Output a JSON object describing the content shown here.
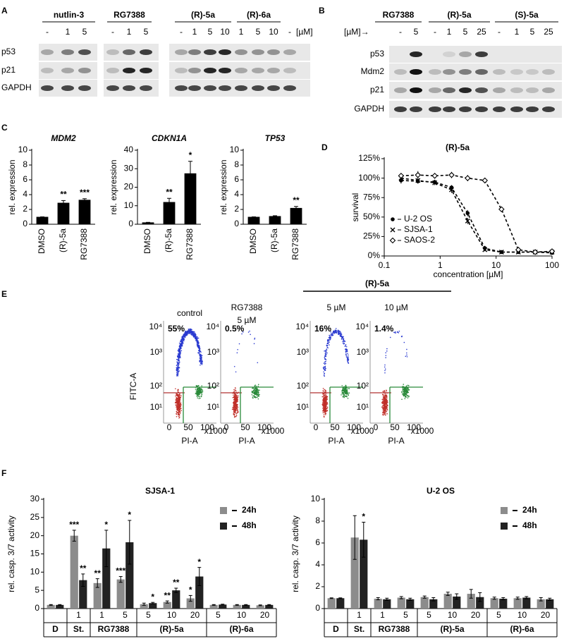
{
  "letters": [
    "A",
    "B",
    "C",
    "D",
    "E",
    "F"
  ],
  "panels": {
    "A": {
      "groups": [
        "nutlin-3",
        "RG7388",
        "(R)-5a",
        "(R)-6a"
      ],
      "lanes": [
        "-",
        "1",
        "5",
        "-",
        "1",
        "5",
        "-",
        "1",
        "5",
        "10",
        "1",
        "5",
        "10",
        "-"
      ],
      "unit": "[µM]",
      "rows": [
        "p53",
        "p21",
        "GAPDH"
      ]
    },
    "B": {
      "groups": [
        "RG7388",
        "(R)-5a",
        "(S)-5a"
      ],
      "unit": "[µM]→",
      "lanes": [
        "-",
        "5",
        "-",
        "1",
        "5",
        "25",
        "-",
        "1",
        "5",
        "25"
      ],
      "rows": [
        "p53",
        "Mdm2",
        "p21",
        "GAPDH"
      ]
    },
    "E": {
      "treatment": "(R)-5a",
      "plots": [
        {
          "title": [
            "control"
          ],
          "percent": "55%"
        },
        {
          "title": [
            "RG7388",
            "5 µM"
          ],
          "percent": "0.5%"
        },
        {
          "title": [
            "5 µM"
          ],
          "percent": "16%"
        },
        {
          "title": [
            "10 µM"
          ],
          "percent": "1.4%"
        }
      ],
      "xlabel": "PI-A",
      "ylabel": "FITC-A",
      "yticks": [
        "10⁴",
        "10³",
        "10²",
        "10¹"
      ],
      "xticks": [
        "0",
        "50",
        "100"
      ],
      "xunit": "x1000"
    }
  },
  "chart_data": [
    {
      "type": "bar",
      "title": "MDM2",
      "ylabel": "rel. expression",
      "categories": [
        "DMSO",
        "(R)-5a",
        "RG7388"
      ],
      "values": [
        1,
        2.9,
        3.3
      ],
      "errors": [
        0,
        0.3,
        0.15
      ],
      "annotations": [
        null,
        "**",
        "***"
      ],
      "color": "#000000",
      "ylim": [
        0,
        10
      ],
      "yticks": [
        0,
        2,
        4,
        6,
        8,
        10
      ]
    },
    {
      "type": "bar",
      "title": "CDKN1A",
      "ylabel": "rel. expression",
      "categories": [
        "DMSO",
        "(R)-5a",
        "RG7388"
      ],
      "values": [
        1,
        12,
        27.5
      ],
      "errors": [
        0,
        2,
        6.5
      ],
      "annotations": [
        null,
        "**",
        "*"
      ],
      "color": "#000000",
      "ylim": [
        0,
        40
      ],
      "yticks": [
        0,
        10,
        20,
        30,
        40
      ]
    },
    {
      "type": "bar",
      "title": "TP53",
      "ylabel": "rel. expression",
      "categories": [
        "DMSO",
        "(R)-5a",
        "RG7388"
      ],
      "values": [
        1,
        1.1,
        2.2
      ],
      "errors": [
        0,
        0.05,
        0.2
      ],
      "annotations": [
        null,
        null,
        "**"
      ],
      "color": "#000000",
      "ylim": [
        0,
        10
      ],
      "yticks": [
        0,
        2,
        4,
        6,
        8,
        10
      ]
    },
    {
      "type": "scatter",
      "title": "(R)-5a",
      "xlabel": "concentration [µM]",
      "ylabel": "survival",
      "xscale": "log",
      "xlim": [
        0.1,
        100
      ],
      "xticks": [
        0.1,
        1,
        10,
        100
      ],
      "ylim": [
        0,
        125
      ],
      "yticks": [
        {
          "value": 0,
          "label": "0%"
        },
        {
          "value": 25,
          "label": "25%"
        },
        {
          "value": 50,
          "label": "50%"
        },
        {
          "value": 75,
          "label": "75%"
        },
        {
          "value": 100,
          "label": "100%"
        },
        {
          "value": 125,
          "label": "125%"
        }
      ],
      "legend": "lower left",
      "series": [
        {
          "name": "U-2 OS",
          "marker": "circle",
          "color": "#000000",
          "x": [
            0.2,
            0.4,
            0.8,
            1.6,
            3.1,
            6.3,
            12.5,
            25,
            50,
            100
          ],
          "values": [
            97,
            96,
            95,
            88,
            55,
            10,
            5,
            5,
            5,
            4
          ],
          "errors": [
            4,
            3,
            3,
            3,
            4,
            3,
            1,
            1,
            1,
            1
          ]
        },
        {
          "name": "SJSA-1",
          "marker": "cross",
          "color": "#000000",
          "x": [
            0.2,
            0.4,
            0.8,
            1.6,
            3.1,
            6.3,
            12.5,
            25,
            50,
            100
          ],
          "values": [
            100,
            97,
            94,
            85,
            45,
            8,
            5,
            5,
            5,
            5
          ],
          "errors": [
            3,
            3,
            3,
            4,
            4,
            2,
            1,
            1,
            1,
            1
          ]
        },
        {
          "name": "SAOS-2",
          "marker": "diamond",
          "color": "#000000",
          "x": [
            0.2,
            0.4,
            0.8,
            1.6,
            3.1,
            6.3,
            12.5,
            25,
            50,
            100
          ],
          "values": [
            103,
            104,
            103,
            104,
            100,
            97,
            60,
            8,
            5,
            6
          ],
          "errors": [
            3,
            5,
            3,
            4,
            4,
            3,
            3,
            2,
            1,
            1
          ]
        }
      ]
    },
    {
      "type": "grouped-bar",
      "title": "SJSA-1",
      "ylabel": "rel. casp. 3/7 activity",
      "groups": [
        {
          "label": "D",
          "categories": [
            null
          ]
        },
        {
          "label": "St.",
          "categories": [
            "1"
          ]
        },
        {
          "label": "RG7388",
          "categories": [
            "1",
            "5"
          ]
        },
        {
          "label": "(R)-5a",
          "categories": [
            "5",
            "10",
            "20"
          ]
        },
        {
          "label": "(R)-6a",
          "categories": [
            "5",
            "10",
            "20"
          ]
        }
      ],
      "ylim": [
        0,
        30
      ],
      "yticks": [
        0,
        5,
        10,
        15,
        20,
        25,
        30
      ],
      "legend": "upper right",
      "series": [
        {
          "name": "24h",
          "color": "#8c8c8c",
          "values": [
            1,
            20,
            7,
            8,
            1.2,
            1.8,
            2.8,
            1,
            1,
            0.9
          ],
          "errors": [
            0.1,
            1.5,
            1.2,
            0.8,
            0.3,
            0.3,
            0.8,
            0.1,
            0.1,
            0.1
          ],
          "annotations": [
            null,
            "***",
            "**",
            "***",
            null,
            "**",
            "*",
            null,
            null,
            null
          ]
        },
        {
          "name": "48h",
          "color": "#222222",
          "values": [
            1,
            7.8,
            16.5,
            18.2,
            1.5,
            5,
            8.8,
            1.1,
            1,
            1
          ],
          "errors": [
            0.1,
            1.7,
            5,
            6,
            0.2,
            0.6,
            2.5,
            0.1,
            0.1,
            0.1
          ],
          "annotations": [
            null,
            "**",
            "*",
            "*",
            "*",
            "**",
            "*",
            null,
            null,
            null
          ]
        }
      ]
    },
    {
      "type": "grouped-bar",
      "title": "U-2 OS",
      "ylabel": "rel. casp. 3/7 activity",
      "groups": [
        {
          "label": "D",
          "categories": [
            null
          ]
        },
        {
          "label": "St.",
          "categories": [
            "1"
          ]
        },
        {
          "label": "RG7388",
          "categories": [
            "1",
            "5"
          ]
        },
        {
          "label": "(R)-5a",
          "categories": [
            "5",
            "10",
            "20"
          ]
        },
        {
          "label": "(R)-6a",
          "categories": [
            "5",
            "10",
            "20"
          ]
        }
      ],
      "ylim": [
        0,
        10
      ],
      "yticks": [
        0,
        2,
        4,
        6,
        8,
        10
      ],
      "legend": "upper right",
      "series": [
        {
          "name": "24h",
          "color": "#8c8c8c",
          "values": [
            0.95,
            6.5,
            0.9,
            1,
            1.05,
            1.35,
            1.35,
            0.95,
            0.95,
            0.85
          ],
          "errors": [
            0.03,
            2,
            0.1,
            0.1,
            0.1,
            0.15,
            0.4,
            0.1,
            0.1,
            0.15
          ],
          "annotations": [
            null,
            null,
            null,
            null,
            null,
            null,
            null,
            null,
            null,
            null
          ]
        },
        {
          "name": "48h",
          "color": "#222222",
          "values": [
            0.95,
            6.3,
            0.85,
            0.85,
            0.85,
            1.1,
            1.05,
            0.9,
            1,
            0.85
          ],
          "errors": [
            0.03,
            1.6,
            0.1,
            0.1,
            0.15,
            0.25,
            0.4,
            0.1,
            0.1,
            0.1
          ],
          "annotations": [
            null,
            "*",
            null,
            null,
            null,
            null,
            null,
            null,
            null,
            null
          ]
        }
      ]
    }
  ]
}
